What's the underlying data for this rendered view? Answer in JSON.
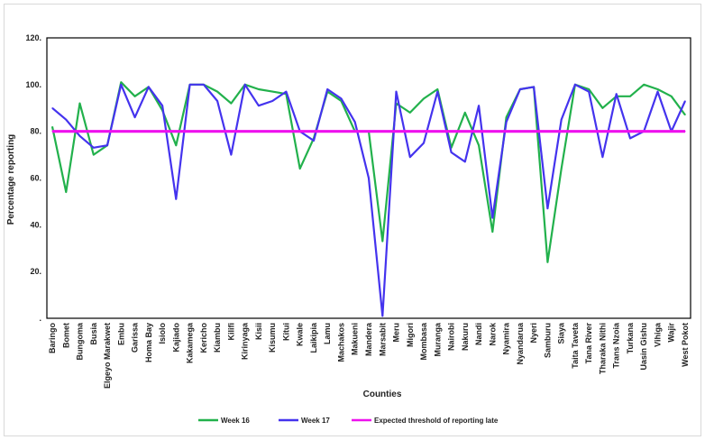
{
  "chart_data": {
    "type": "line",
    "title": "",
    "xlabel": "Counties",
    "ylabel": "Percentage reporting",
    "ylim": [
      0,
      120
    ],
    "y_ticks": [
      "",
      "20.",
      "40.",
      "60.",
      "80.",
      "100.",
      "120."
    ],
    "grid": false,
    "legend_position": "bottom",
    "categories": [
      "Baringo",
      "Bomet",
      "Bungoma",
      "Busia",
      "Elgeyo Marakwet",
      "Embu",
      "Garissa",
      "Homa Bay",
      "Isiolo",
      "Kajiado",
      "Kakamega",
      "Kericho",
      "Kiambu",
      "Kilifi",
      "Kirinyaga",
      "Kisii",
      "Kisumu",
      "Kitui",
      "Kwale",
      "Laikipia",
      "Lamu",
      "Machakos",
      "Makueni",
      "Mandera",
      "Marsabit",
      "Meru",
      "Migori",
      "Mombasa",
      "Muranga",
      "Nairobi",
      "Nakuru",
      "Nandi",
      "Narok",
      "Nyamira",
      "Nyandarua",
      "Nyeri",
      "Samburu",
      "Siaya",
      "Taita Taveta",
      "Tana River",
      "Tharaka Nithi",
      "Trans Nzoia",
      "Turkana",
      "Uasin Gishu",
      "Vihiga",
      "Wajir",
      "West Pokot"
    ],
    "series": [
      {
        "name": "Week 16",
        "color": "#22b14c",
        "values": [
          82,
          54,
          92,
          70,
          74,
          101,
          95,
          99,
          89,
          74,
          100,
          100,
          97,
          92,
          100,
          98,
          97,
          96,
          64,
          77,
          97,
          93,
          80,
          80,
          33,
          92,
          88,
          94,
          98,
          73,
          88,
          74,
          37,
          86,
          98,
          99,
          24,
          64,
          100,
          98,
          90,
          95,
          95,
          100,
          98,
          95,
          87
        ]
      },
      {
        "name": "Week 17",
        "color": "#4433ee",
        "values": [
          90,
          85,
          78,
          73,
          74,
          100,
          86,
          99,
          91,
          51,
          100,
          100,
          93,
          70,
          100,
          91,
          93,
          97,
          80,
          76,
          98,
          94,
          84,
          60,
          1,
          97,
          69,
          75,
          97,
          71,
          67,
          91,
          43,
          84,
          98,
          99,
          47,
          85,
          100,
          97,
          69,
          96,
          77,
          80,
          97,
          80,
          93
        ]
      },
      {
        "name": "Expected threshold of reporting late",
        "color": "#ee11ee",
        "values": [
          80,
          80,
          80,
          80,
          80,
          80,
          80,
          80,
          80,
          80,
          80,
          80,
          80,
          80,
          80,
          80,
          80,
          80,
          80,
          80,
          80,
          80,
          80,
          80,
          80,
          80,
          80,
          80,
          80,
          80,
          80,
          80,
          80,
          80,
          80,
          80,
          80,
          80,
          80,
          80,
          80,
          80,
          80,
          80,
          80,
          80,
          80
        ]
      }
    ]
  }
}
